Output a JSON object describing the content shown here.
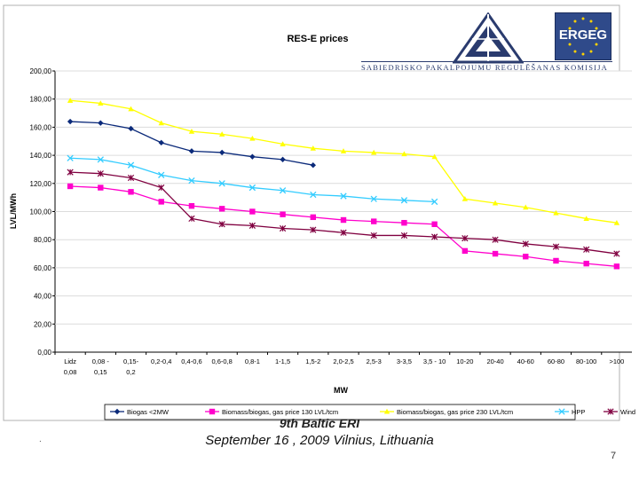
{
  "chart_data": {
    "type": "line",
    "title": "RES-E prices",
    "xlabel": "MW",
    "ylabel": "LVL/MWh",
    "ylim": [
      0,
      200
    ],
    "yticks": [
      "0,00",
      "20,00",
      "40,00",
      "60,00",
      "80,00",
      "100,00",
      "120,00",
      "140,00",
      "160,00",
      "180,00",
      "200,00"
    ],
    "categories": [
      [
        "Lidz",
        "0,08"
      ],
      [
        "0,08 -",
        "0,15"
      ],
      [
        "0,15-",
        "0,2"
      ],
      [
        "0,2-0,4"
      ],
      [
        "0,4-0,6"
      ],
      [
        "0,6-0,8"
      ],
      [
        "0,8-1"
      ],
      [
        "1-1,5"
      ],
      [
        "1,5-2"
      ],
      [
        "2,0-2,5"
      ],
      [
        "2,5-3"
      ],
      [
        "3-3,5"
      ],
      [
        "3,5 - 10"
      ],
      [
        "10-20"
      ],
      [
        "20-40"
      ],
      [
        "40-60"
      ],
      [
        "60-80"
      ],
      [
        "80-100"
      ],
      [
        ">100"
      ]
    ],
    "series": [
      {
        "name": "Biogas <2MW",
        "color": "#0b2a7a",
        "marker": "diamond",
        "values": [
          164,
          163,
          159,
          149,
          143,
          142,
          139,
          137,
          133,
          null,
          null,
          null,
          null,
          null,
          null,
          null,
          null,
          null,
          null
        ]
      },
      {
        "name": "Biomass/biogas, gas price 130 LVL/tcm",
        "color": "#ff00cc",
        "marker": "square",
        "values": [
          118,
          117,
          114,
          107,
          104,
          102,
          100,
          98,
          96,
          94,
          93,
          92,
          91,
          72,
          70,
          68,
          65,
          63,
          61
        ]
      },
      {
        "name": "Biomass/biogas, gas price 230 LVL/tcm",
        "color": "#ffff00",
        "marker": "triangle",
        "values": [
          179,
          177,
          173,
          163,
          157,
          155,
          152,
          148,
          145,
          143,
          142,
          141,
          139,
          109,
          106,
          103,
          99,
          95,
          92
        ]
      },
      {
        "name": "HPP",
        "color": "#33ccff",
        "marker": "x",
        "values": [
          138,
          137,
          133,
          126,
          122,
          120,
          117,
          115,
          112,
          111,
          109,
          108,
          107,
          null,
          null,
          null,
          null,
          null,
          null
        ]
      },
      {
        "name": "Wind",
        "color": "#800040",
        "marker": "star",
        "values": [
          128,
          127,
          124,
          117,
          95,
          91,
          90,
          88,
          87,
          85,
          83,
          83,
          82,
          81,
          80,
          77,
          75,
          73,
          70
        ]
      }
    ]
  },
  "header": {
    "org_name": "SABIEDRISKO PAKALPOJUMU REGULĒŠANAS KOMISIJA",
    "ergeg_label": "ERGEG"
  },
  "footer": {
    "event": "9th Baltic ERI",
    "date_place": "September 16 , 2009 Vilnius, Lithuania",
    "page_number": "7",
    "dot": "."
  }
}
